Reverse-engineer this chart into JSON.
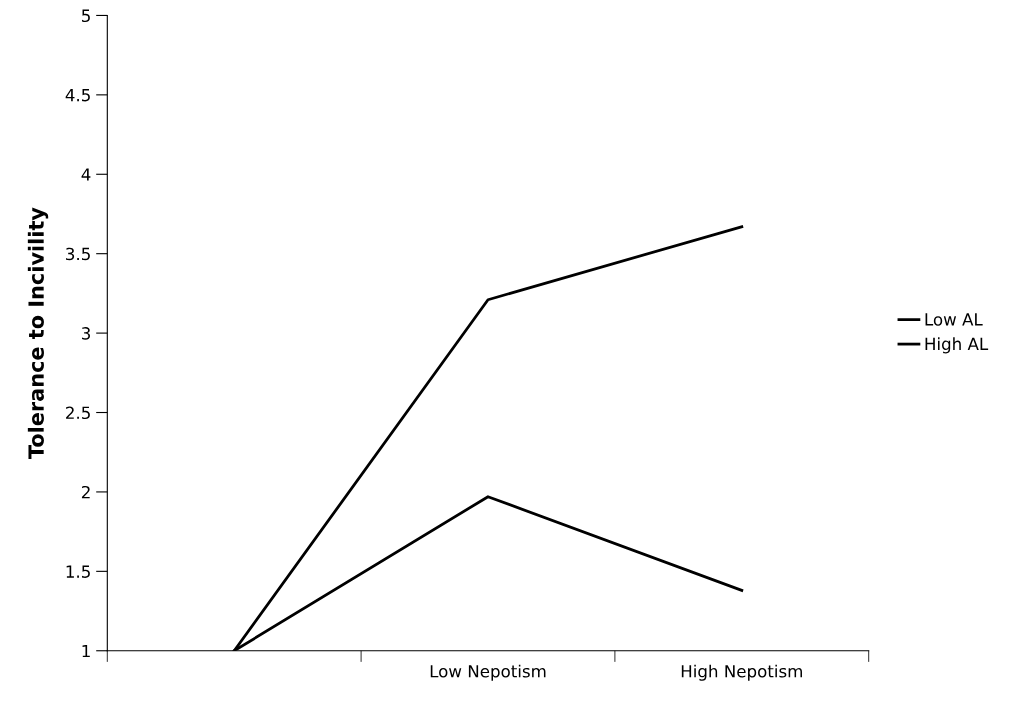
{
  "chart_data": {
    "type": "line",
    "ylabel": "Tolerance to Incivility",
    "categories": [
      null,
      "Low Nepotism",
      "High Nepotism"
    ],
    "series": [
      {
        "name": "Low AL",
        "color": "#000000",
        "values": [
          1,
          3.21,
          3.67
        ]
      },
      {
        "name": "High AL",
        "color": "#000000",
        "values": [
          1,
          1.97,
          1.38
        ]
      }
    ],
    "ylim": [
      1,
      5
    ],
    "yticks": [
      1,
      1.5,
      2,
      2.5,
      3,
      3.5,
      4,
      4.5,
      5
    ],
    "grid": false,
    "legend": "right",
    "marker": "none",
    "line_style": "solid"
  }
}
